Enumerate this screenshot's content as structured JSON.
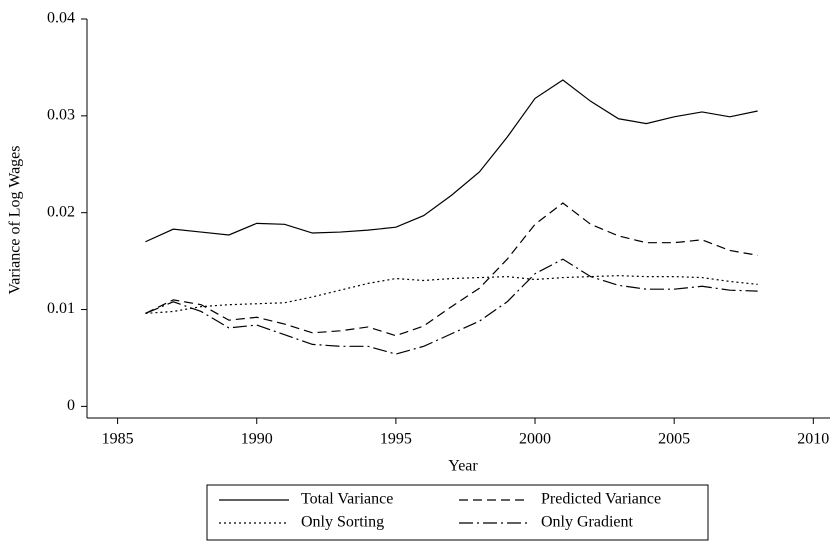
{
  "chart_data": {
    "type": "line",
    "y_label": "Variance of Log Wages",
    "x_label": "Year",
    "x": [
      1986,
      1987,
      1988,
      1989,
      1990,
      1991,
      1992,
      1993,
      1994,
      1995,
      1996,
      1997,
      1998,
      1999,
      2000,
      2001,
      2002,
      2003,
      2004,
      2005,
      2006,
      2007,
      2008
    ],
    "series": [
      {
        "name": "Total Variance",
        "color": "#000000",
        "line_style": "solid",
        "values": [
          0.017,
          0.0183,
          0.018,
          0.0177,
          0.0189,
          0.0188,
          0.0179,
          0.018,
          0.0182,
          0.0185,
          0.0197,
          0.0218,
          0.0242,
          0.0278,
          0.0318,
          0.0337,
          0.0315,
          0.0297,
          0.0292,
          0.0299,
          0.0304,
          0.0299,
          0.0305
        ]
      },
      {
        "name": "Predicted Variance",
        "color": "#000000",
        "line_style": "dashed",
        "values": [
          0.0096,
          0.011,
          0.0105,
          0.0089,
          0.0092,
          0.0085,
          0.0076,
          0.0078,
          0.0082,
          0.0073,
          0.0083,
          0.0103,
          0.0122,
          0.0152,
          0.0188,
          0.021,
          0.0188,
          0.0176,
          0.0169,
          0.0169,
          0.0172,
          0.0161,
          0.0156
        ]
      },
      {
        "name": "Only Sorting",
        "color": "#000000",
        "line_style": "dotted",
        "values": [
          0.0096,
          0.0098,
          0.0103,
          0.0105,
          0.0106,
          0.0107,
          0.0113,
          0.012,
          0.0127,
          0.0132,
          0.013,
          0.0132,
          0.0133,
          0.0134,
          0.0131,
          0.0133,
          0.0134,
          0.0135,
          0.0134,
          0.0134,
          0.0133,
          0.0129,
          0.0126
        ]
      },
      {
        "name": "Only Gradient",
        "color": "#000000",
        "line_style": "dashdot",
        "values": [
          0.0096,
          0.0108,
          0.0098,
          0.0081,
          0.0084,
          0.0074,
          0.0064,
          0.0062,
          0.0062,
          0.0054,
          0.0062,
          0.0075,
          0.0088,
          0.0108,
          0.0137,
          0.0152,
          0.0134,
          0.0125,
          0.0121,
          0.0121,
          0.0124,
          0.012,
          0.0119
        ]
      }
    ],
    "xlim": [
      1983.9,
      2010.6
    ],
    "xticks": [
      1985,
      1990,
      1995,
      2000,
      2005,
      2010
    ],
    "ylim": [
      -0.0012,
      0.04
    ],
    "yticks": [
      0,
      0.01,
      0.02,
      0.03,
      0.04
    ],
    "grid": false,
    "legend": "bottom"
  }
}
